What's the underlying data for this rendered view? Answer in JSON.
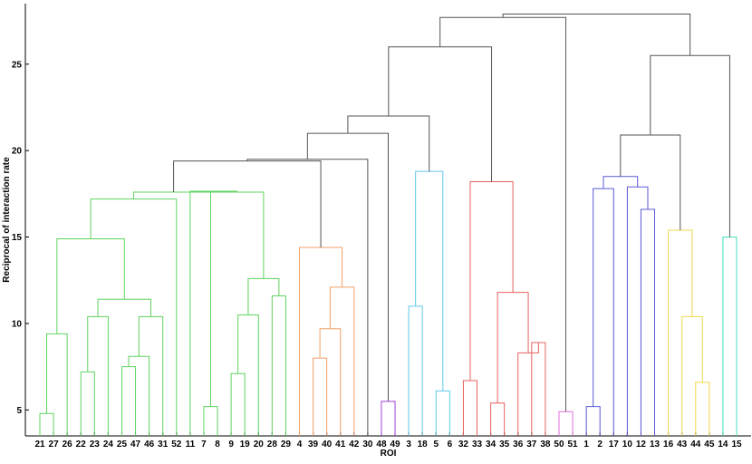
{
  "chart_data": {
    "type": "dendrogram",
    "xlabel": "ROI",
    "ylabel": "Reciprocal of interaction rate",
    "ylim": [
      3.5,
      28.5
    ],
    "yticks": [
      5,
      10,
      15,
      20,
      25
    ],
    "grid": false,
    "leaf_order": [
      "21",
      "27",
      "26",
      "22",
      "23",
      "24",
      "25",
      "47",
      "46",
      "31",
      "52",
      "11",
      "7",
      "8",
      "9",
      "19",
      "20",
      "28",
      "29",
      "4",
      "39",
      "40",
      "41",
      "42",
      "30",
      "48",
      "49",
      "3",
      "18",
      "5",
      "6",
      "32",
      "33",
      "34",
      "35",
      "36",
      "37",
      "38",
      "50",
      "51",
      "1",
      "2",
      "17",
      "10",
      "12",
      "13",
      "16",
      "43",
      "44",
      "45",
      "14",
      "15"
    ],
    "colors": {
      "green": "#5fd35f",
      "orange": "#f0a068",
      "purple": "#a040d8",
      "cyan": "#60c8ea",
      "red": "#e86060",
      "magenta": "#e070e0",
      "blue": "#5a5ad6",
      "yellow": "#f2d84a",
      "teal": "#40e0c0",
      "black": "#555555"
    },
    "merges": [
      {
        "id": "a1",
        "left": "21",
        "right": "27",
        "height": 4.8,
        "color": "green"
      },
      {
        "id": "g1",
        "left": "a1",
        "right": "26",
        "height": 9.4,
        "color": "green"
      },
      {
        "id": "a2",
        "left": "22",
        "right": "23",
        "height": 7.2,
        "color": "green"
      },
      {
        "id": "a3",
        "left": "a2",
        "right": "24",
        "height": 10.4,
        "color": "green"
      },
      {
        "id": "a4",
        "left": "25",
        "right": "47",
        "height": 7.5,
        "color": "green"
      },
      {
        "id": "a5",
        "left": "a4",
        "right": "46",
        "height": 8.1,
        "color": "green"
      },
      {
        "id": "a6",
        "left": "a5",
        "right": "31",
        "height": 10.4,
        "color": "green"
      },
      {
        "id": "a7",
        "left": "a3",
        "right": "a6",
        "height": 11.4,
        "color": "green"
      },
      {
        "id": "a8",
        "left": "g1",
        "right": "a7",
        "height": 14.9,
        "color": "green"
      },
      {
        "id": "a9",
        "left": "a8",
        "right": "52",
        "height": 17.2,
        "color": "green"
      },
      {
        "id": "b1",
        "left": "7",
        "right": "8",
        "height": 5.2,
        "color": "green"
      },
      {
        "id": "b2",
        "left": "9",
        "right": "19",
        "height": 7.1,
        "color": "green"
      },
      {
        "id": "b3",
        "left": "b2",
        "right": "20",
        "height": 10.5,
        "color": "green"
      },
      {
        "id": "b4",
        "left": "28",
        "right": "29",
        "height": 11.6,
        "color": "green"
      },
      {
        "id": "b5",
        "left": "b3",
        "right": "b4",
        "height": 12.6,
        "color": "green"
      },
      {
        "id": "b6",
        "left": "b1",
        "right": "b5",
        "height": 17.6,
        "color": "green"
      },
      {
        "id": "b7",
        "left": "11",
        "right": "b6",
        "height": 17.65,
        "color": "green"
      },
      {
        "id": "G",
        "left": "a9",
        "right": "b7",
        "height": 17.6,
        "color": "green"
      },
      {
        "id": "o1",
        "left": "39",
        "right": "40",
        "height": 8.0,
        "color": "orange"
      },
      {
        "id": "o2",
        "left": "o1",
        "right": "41",
        "height": 9.7,
        "color": "orange"
      },
      {
        "id": "o3",
        "left": "o2",
        "right": "42",
        "height": 12.1,
        "color": "orange"
      },
      {
        "id": "O",
        "left": "4",
        "right": "o3",
        "height": 14.4,
        "color": "orange"
      },
      {
        "id": "P",
        "left": "48",
        "right": "49",
        "height": 5.5,
        "color": "purple"
      },
      {
        "id": "c1",
        "left": "3",
        "right": "18",
        "height": 11.0,
        "color": "cyan"
      },
      {
        "id": "c2",
        "left": "5",
        "right": "6",
        "height": 6.1,
        "color": "cyan"
      },
      {
        "id": "C",
        "left": "c1",
        "right": "c2",
        "height": 18.8,
        "color": "cyan"
      },
      {
        "id": "r1",
        "left": "32",
        "right": "33",
        "height": 6.7,
        "color": "red"
      },
      {
        "id": "r2",
        "left": "34",
        "right": "35",
        "height": 5.4,
        "color": "red"
      },
      {
        "id": "r3",
        "left": "37",
        "right": "38",
        "height": 8.9,
        "color": "red"
      },
      {
        "id": "r4",
        "left": "36",
        "right": "r3",
        "height": 8.3,
        "color": "red"
      },
      {
        "id": "r5",
        "left": "r2",
        "right": "r4",
        "height": 11.8,
        "color": "red"
      },
      {
        "id": "R",
        "left": "r1",
        "right": "r5",
        "height": 18.2,
        "color": "red"
      },
      {
        "id": "M",
        "left": "50",
        "right": "51",
        "height": 4.9,
        "color": "magenta"
      },
      {
        "id": "u1",
        "left": "1",
        "right": "2",
        "height": 5.2,
        "color": "blue"
      },
      {
        "id": "u2",
        "left": "u1",
        "right": "17",
        "height": 17.8,
        "color": "blue"
      },
      {
        "id": "u3",
        "left": "12",
        "right": "13",
        "height": 16.6,
        "color": "blue"
      },
      {
        "id": "u4",
        "left": "10",
        "right": "u3",
        "height": 17.9,
        "color": "blue"
      },
      {
        "id": "U",
        "left": "u2",
        "right": "u4",
        "height": 18.5,
        "color": "blue"
      },
      {
        "id": "y1",
        "left": "44",
        "right": "45",
        "height": 6.6,
        "color": "yellow"
      },
      {
        "id": "y2",
        "left": "43",
        "right": "y1",
        "height": 10.4,
        "color": "yellow"
      },
      {
        "id": "Y",
        "left": "16",
        "right": "y2",
        "height": 15.4,
        "color": "yellow"
      },
      {
        "id": "T",
        "left": "14",
        "right": "15",
        "height": 15.0,
        "color": "teal"
      },
      {
        "id": "k1",
        "left": "G",
        "right": "O",
        "height": 19.4,
        "color": "black"
      },
      {
        "id": "k2",
        "left": "k1",
        "right": "30",
        "height": 19.5,
        "color": "black"
      },
      {
        "id": "k3",
        "left": "k2",
        "right": "P",
        "height": 21.0,
        "color": "black"
      },
      {
        "id": "k4",
        "left": "k3",
        "right": "C",
        "height": 22.0,
        "color": "black"
      },
      {
        "id": "k5",
        "left": "k4",
        "right": "R",
        "height": 26.0,
        "color": "black"
      },
      {
        "id": "k6",
        "left": "k5",
        "right": "M",
        "height": 27.7,
        "color": "black"
      },
      {
        "id": "k7",
        "left": "U",
        "right": "Y",
        "height": 20.9,
        "color": "black"
      },
      {
        "id": "k8",
        "left": "k7",
        "right": "T",
        "height": 25.5,
        "color": "black"
      },
      {
        "id": "root",
        "left": "k6",
        "right": "k8",
        "height": 27.9,
        "color": "black"
      }
    ]
  }
}
